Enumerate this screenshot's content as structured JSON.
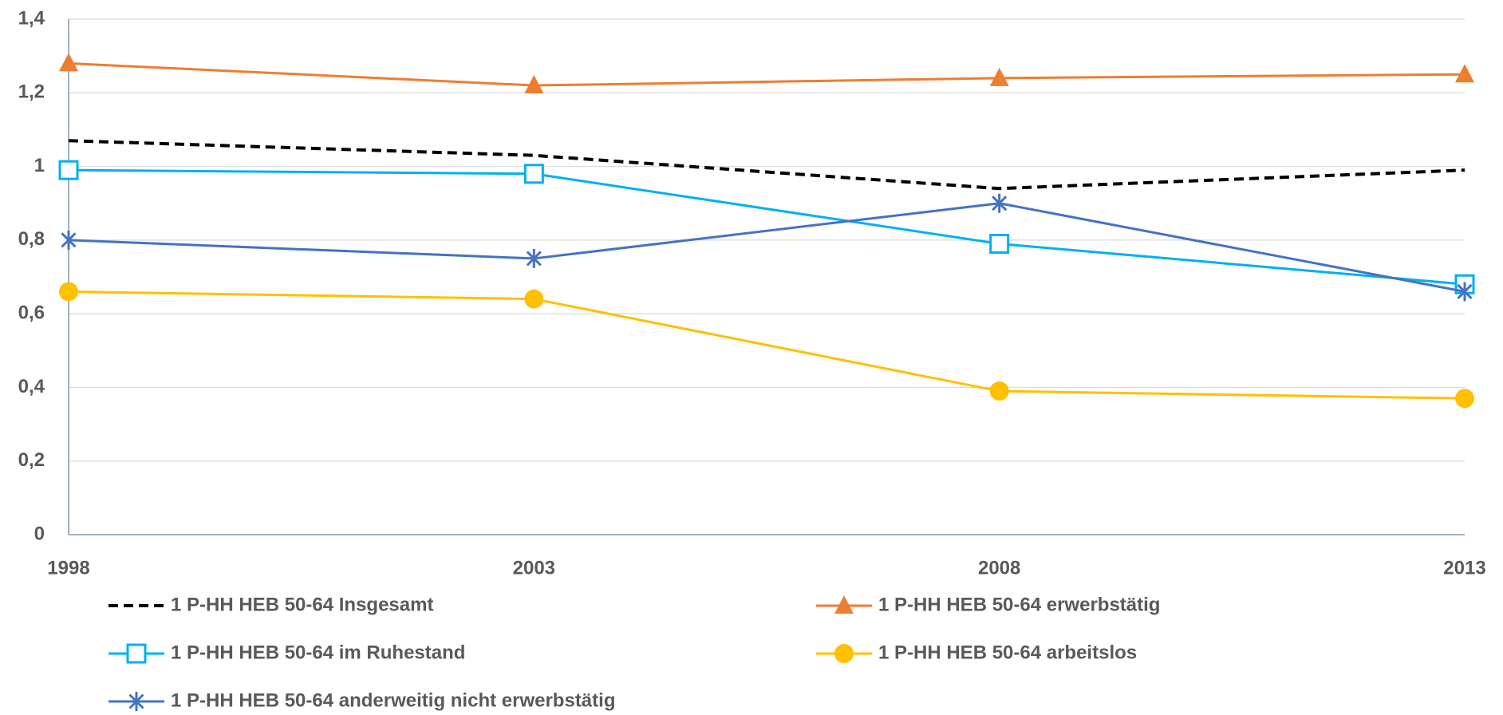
{
  "chart_data": {
    "type": "line",
    "categories": [
      "1998",
      "2003",
      "2008",
      "2013"
    ],
    "series": [
      {
        "name": "1 P-HH HEB 50-64 Insgesamt",
        "color": "#000000",
        "dash": true,
        "marker": "none",
        "values": [
          1.07,
          1.03,
          0.94,
          0.99
        ]
      },
      {
        "name": "1 P-HH HEB 50-64 erwerbstätig",
        "color": "#ED7D31",
        "marker": "triangle",
        "values": [
          1.28,
          1.22,
          1.24,
          1.25
        ]
      },
      {
        "name": "1 P-HH HEB 50-64 im Ruhestand",
        "color": "#00B0F0",
        "marker": "square",
        "values": [
          0.99,
          0.98,
          0.79,
          0.68
        ]
      },
      {
        "name": "1 P-HH HEB 50-64 arbeitslos",
        "color": "#FFC000",
        "marker": "circle",
        "values": [
          0.66,
          0.64,
          0.39,
          0.37
        ]
      },
      {
        "name": "1 P-HH HEB 50-64 anderweitig nicht erwerbstätig",
        "color": "#4472C4",
        "marker": "asterisk",
        "values": [
          0.8,
          0.75,
          0.9,
          0.66
        ]
      }
    ],
    "ylim": [
      0,
      1.4
    ],
    "yticks": [
      0,
      {
        "value": 0.2,
        "label": "0,2"
      },
      {
        "value": 0.4,
        "label": "0,4"
      },
      {
        "value": 0.6,
        "label": "0,6"
      },
      {
        "value": 0.8,
        "label": "0,8"
      },
      1,
      {
        "value": 1.2,
        "label": "1,2"
      },
      {
        "value": 1.4,
        "label": "1,4"
      }
    ],
    "grid": true,
    "legend": "bottom"
  }
}
